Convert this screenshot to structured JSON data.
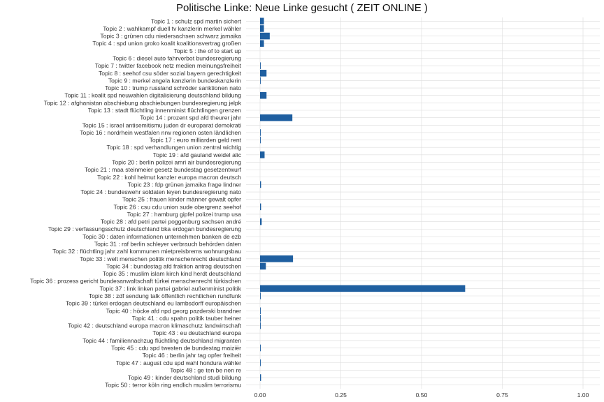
{
  "chart_data": {
    "type": "bar",
    "orientation": "horizontal",
    "title": "Politische Linke: Neue Linke gesucht ( ZEIT ONLINE )",
    "xlabel": "",
    "ylabel": "",
    "xlim": [
      0,
      1
    ],
    "x_ticks": [
      "0.00",
      "0.25",
      "0.50",
      "0.75",
      "1.00"
    ],
    "grid": true,
    "bar_color": "#1f5fa0",
    "categories": [
      "Topic 1 : schulz spd martin sichert",
      "Topic 2 : wahlkampf duell tv kanzlerin merkel wähler",
      "Topic 3 : grünen cdu niedersachsen schwarz jamaika",
      "Topic 4 : spd union groko koalit koalitionsvertrag großen",
      "Topic 5 : the of to start up",
      "Topic 6 : diesel auto fahrverbot bundesregierung",
      "Topic 7 : twitter facebook netz medien meinungsfreiheit",
      "Topic 8 : seehof csu söder sozial bayern gerechtigkeit",
      "Topic 9 : merkel angela kanzlerin bundeskanzlerin",
      "Topic 10 : trump russland schröder sanktionen nato",
      "Topic 11 : koalit spd neuwahlen digitalisierung deutschland bildung",
      "Topic 12 : afghanistan abschiebung abschiebungen bundesregierung jelpk",
      "Topic 13 : stadt flüchtling innenminist flüchtlingen grenzen",
      "Topic 14 : prozent spd afd theurer jahr",
      "Topic 15 : israel antisemitismu juden dr europarat demokrati",
      "Topic 16 : nordrhein westfalen nrw regionen osten ländlichen",
      "Topic 17 : euro milliarden geld rent",
      "Topic 18 : spd verhandlungen union zentral wichtig",
      "Topic 19 : afd gauland weidel alic",
      "Topic 20 : berlin polizei amri air bundesregierung",
      "Topic 21 : maa steinmeier gesetz bundestag gesetzentwurf",
      "Topic 22 : kohl helmut kanzler europa macron deutsch",
      "Topic 23 : fdp grünen jamaika frage lindner",
      "Topic 24 : bundeswehr soldaten leyen bundesregierung nato",
      "Topic 25 : frauen kinder männer gewalt opfer",
      "Topic 26 : csu cdu union sude obergrenz seehof",
      "Topic 27 : hamburg gipfel polizei trump usa",
      "Topic 28 : afd petri partei poggenburg sachsen andré",
      "Topic 29 : verfassungsschutz deutschland bka erdogan bundesregierung",
      "Topic 30 : daten informationen unternehmen banken de ezb",
      "Topic 31 : raf berlin schleyer verbrauch behörden daten",
      "Topic 32 : flüchtling jahr zahl kommunen mietpreisbrems wohnungsbau",
      "Topic 33 : welt menschen politik menschenrecht deutschland",
      "Topic 34 : bundestag afd fraktion antrag deutschen",
      "Topic 35 : muslim islam kirch kind herdt deutschland",
      "Topic 36 : prozess gericht bundesanwaltschaft türkei menschenrecht türkischen",
      "Topic 37 : link linken partei gabriel außenminist politik",
      "Topic 38 : zdf sendung talk öffentlich rechtlichen rundfunk",
      "Topic 39 : türkei erdogan deutschland eu lambsdorff europäischen",
      "Topic 40 : höcke afd npd georg pazderski brandner",
      "Topic 41 : cdu spahn politik tauber heiner",
      "Topic 42 : deutschland europa macron klimaschutz landwirtschaft",
      "Topic 43 : eu deutschland europa",
      "Topic 44 : familiennachzug flüchtling deutschland migranten",
      "Topic 45 : cdu spd twesten de bundestag maiziër",
      "Topic 46 : berlin jahr tag opfer freiheit",
      "Topic 47 : august cdu spd wahl hondura wähler",
      "Topic 48 : ge ten be nen re",
      "Topic 49 : kinder deutschland studi bildung",
      "Topic 50 : terror köln ring endlich muslim terrorismu"
    ],
    "values": [
      0.012,
      0.012,
      0.03,
      0.012,
      0.0,
      0.0,
      0.002,
      0.02,
      0.002,
      0.0,
      0.02,
      0.0,
      0.0,
      0.1,
      0.0,
      0.002,
      0.002,
      0.0,
      0.014,
      0.0,
      0.0,
      0.0,
      0.003,
      0.0,
      0.0,
      0.003,
      0.0,
      0.005,
      0.0,
      0.0,
      0.0,
      0.0,
      0.102,
      0.018,
      0.0,
      0.0,
      0.635,
      0.002,
      0.0,
      0.002,
      0.002,
      0.002,
      0.0,
      0.0,
      0.002,
      0.0,
      0.002,
      0.0,
      0.003,
      0.0
    ]
  }
}
